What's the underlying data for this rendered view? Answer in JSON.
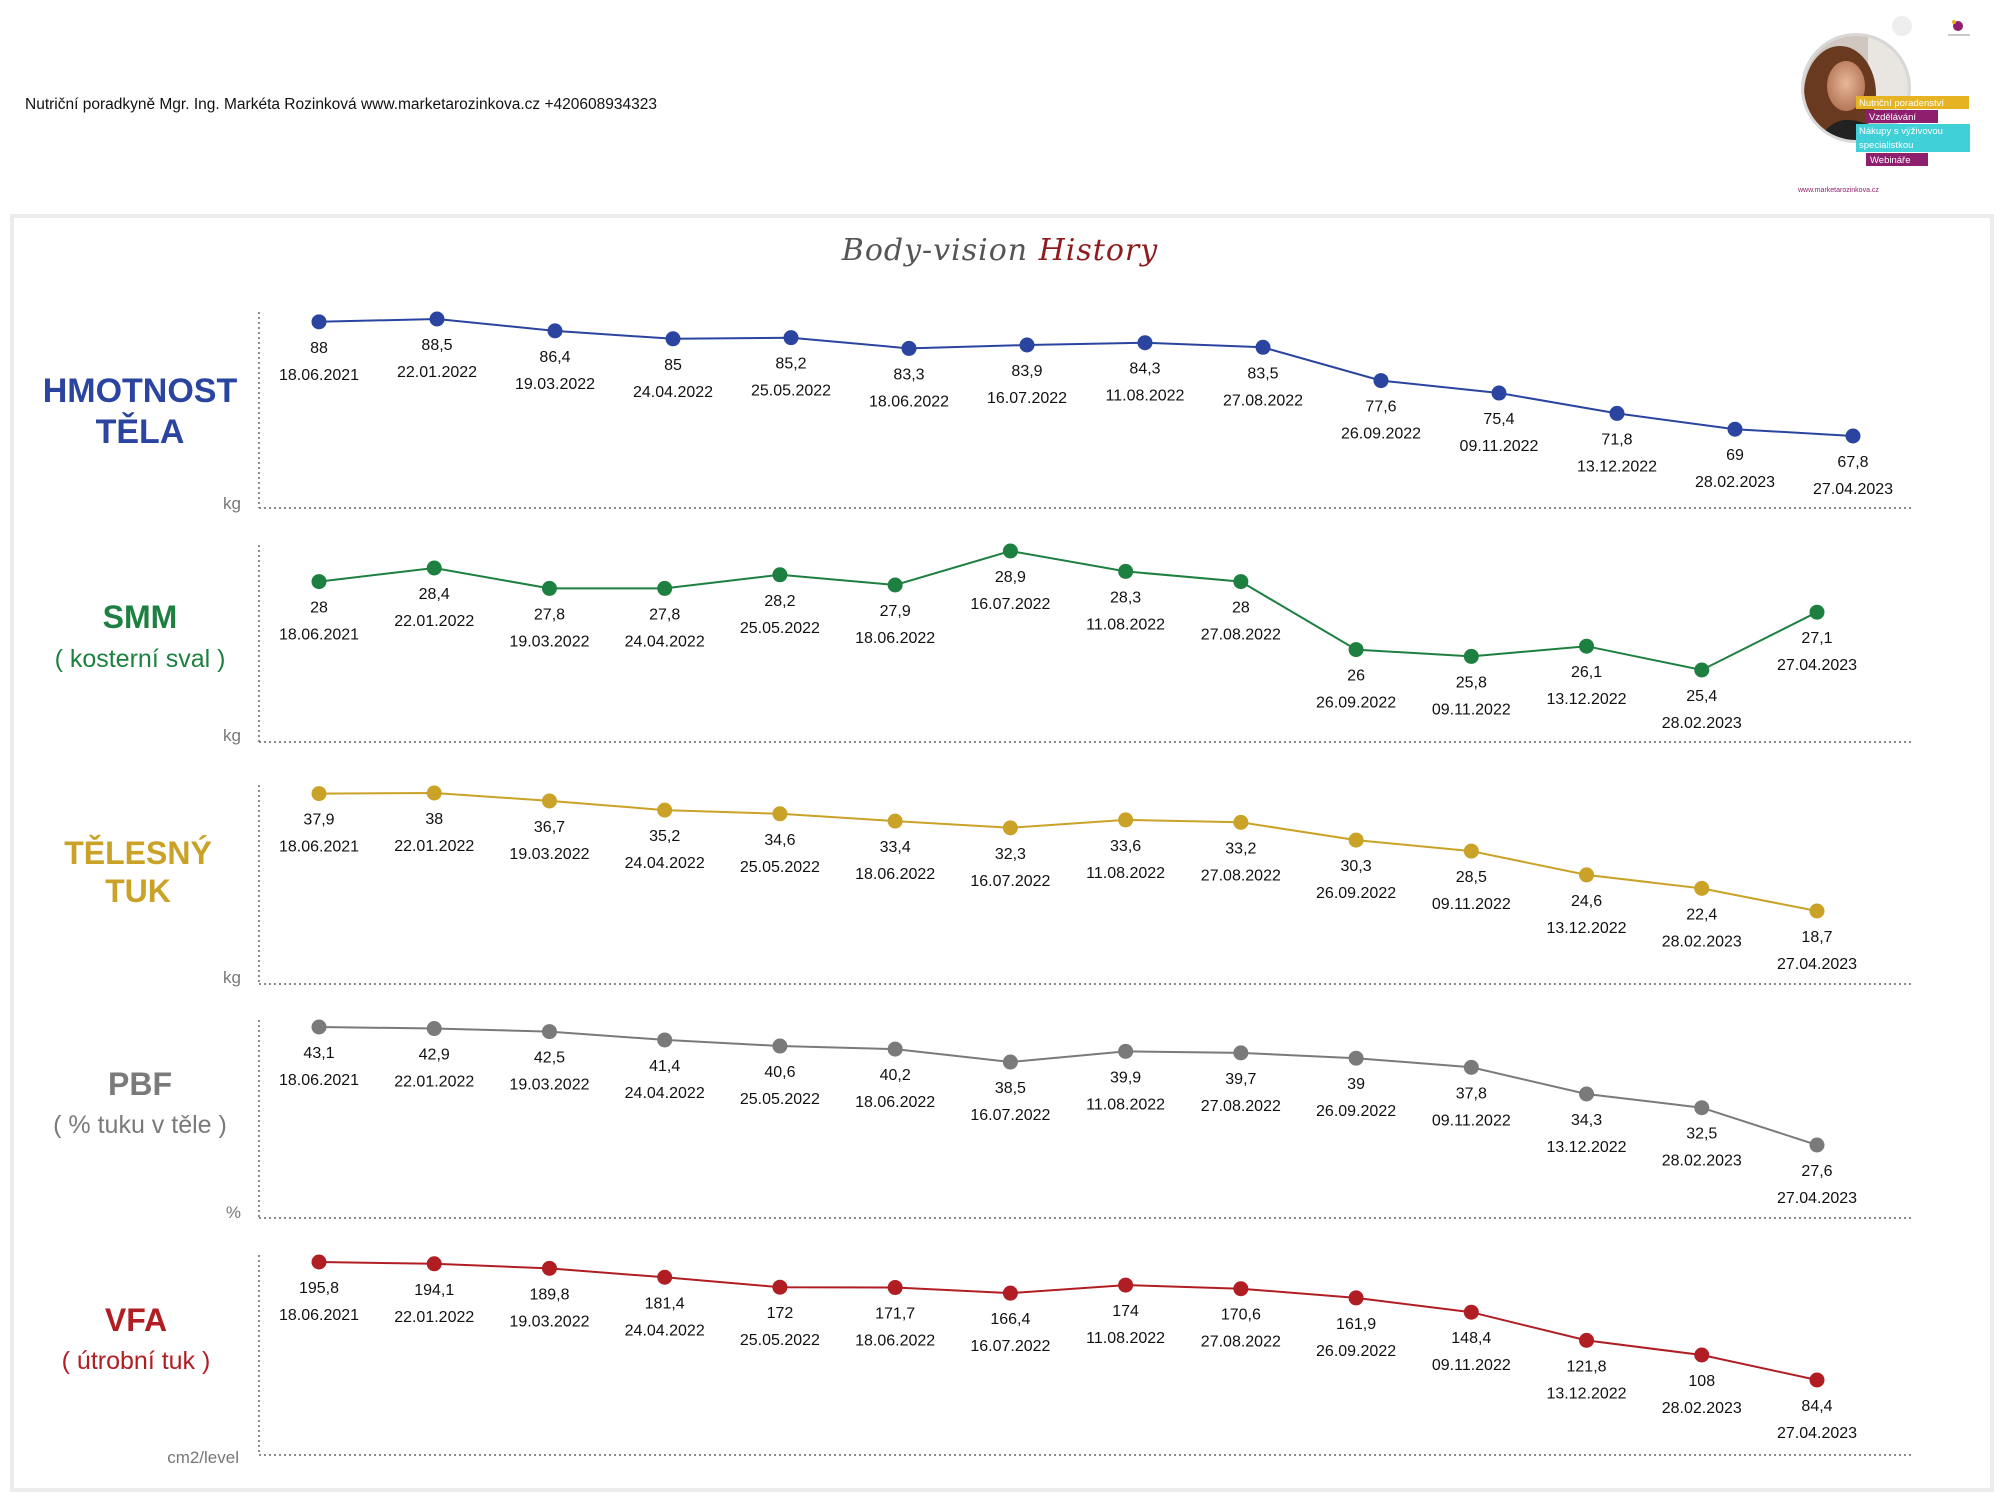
{
  "header": {
    "contact": "Nutriční poradkyně Mgr. Ing. Markéta Rozinková www.marketarozinkova.cz +420608934323"
  },
  "logo": {
    "badges": [
      "Nutriční poradenství",
      "Vzdělávání",
      "Nákupy s výživovou",
      "specialistkou",
      "Webináře"
    ],
    "url": "www.marketarozinkova.cz",
    "colors": {
      "yellow": "#e6b422",
      "purple": "#8e1e6e",
      "cyan": "#3fd0d8"
    }
  },
  "title": {
    "part1": "Body-vision",
    "part2": "History"
  },
  "chart_data": [
    {
      "type": "line",
      "label_line1": "HMOTNOST",
      "label_line2": "TĚLA",
      "unit": "kg",
      "color": "#2a44a0",
      "x": [
        "18.06.2021",
        "22.01.2022",
        "19.03.2022",
        "24.04.2022",
        "25.05.2022",
        "18.06.2022",
        "16.07.2022",
        "11.08.2022",
        "27.08.2022",
        "26.09.2022",
        "09.11.2022",
        "13.12.2022",
        "28.02.2023",
        "27.04.2023"
      ],
      "values": [
        "88",
        "88,5",
        "86,4",
        "85",
        "85,2",
        "83,3",
        "83,9",
        "84,3",
        "83,5",
        "77,6",
        "75,4",
        "71,8",
        "69",
        "67,8"
      ],
      "ylim": [
        67.8,
        88.5
      ]
    },
    {
      "type": "line",
      "label_line1": "SMM",
      "label_line2": "( kosterní sval )",
      "unit": "kg",
      "color": "#1e8040",
      "x": [
        "18.06.2021",
        "22.01.2022",
        "19.03.2022",
        "24.04.2022",
        "25.05.2022",
        "18.06.2022",
        "16.07.2022",
        "11.08.2022",
        "27.08.2022",
        "26.09.2022",
        "09.11.2022",
        "13.12.2022",
        "28.02.2023",
        "27.04.2023"
      ],
      "values": [
        "28",
        "28,4",
        "27,8",
        "27,8",
        "28,2",
        "27,9",
        "28,9",
        "28,3",
        "28",
        "26",
        "25,8",
        "26,1",
        "25,4",
        "27,1"
      ],
      "ylim": [
        25.4,
        28.9
      ]
    },
    {
      "type": "line",
      "label_line1": "TĚLESNÝ",
      "label_line2": "TUK",
      "unit": "kg",
      "color": "#c9a227",
      "x": [
        "18.06.2021",
        "22.01.2022",
        "19.03.2022",
        "24.04.2022",
        "25.05.2022",
        "18.06.2022",
        "16.07.2022",
        "11.08.2022",
        "27.08.2022",
        "26.09.2022",
        "09.11.2022",
        "13.12.2022",
        "28.02.2023",
        "27.04.2023"
      ],
      "values": [
        "37,9",
        "38",
        "36,7",
        "35,2",
        "34,6",
        "33,4",
        "32,3",
        "33,6",
        "33,2",
        "30,3",
        "28,5",
        "24,6",
        "22,4",
        "18,7"
      ],
      "ylim": [
        18.7,
        38
      ]
    },
    {
      "type": "line",
      "label_line1": "PBF",
      "label_line2": "( % tuku v těle )",
      "unit": "%",
      "color": "#7a7a7a",
      "x": [
        "18.06.2021",
        "22.01.2022",
        "19.03.2022",
        "24.04.2022",
        "25.05.2022",
        "18.06.2022",
        "16.07.2022",
        "11.08.2022",
        "27.08.2022",
        "26.09.2022",
        "09.11.2022",
        "13.12.2022",
        "28.02.2023",
        "27.04.2023"
      ],
      "values": [
        "43,1",
        "42,9",
        "42,5",
        "41,4",
        "40,6",
        "40,2",
        "38,5",
        "39,9",
        "39,7",
        "39",
        "37,8",
        "34,3",
        "32,5",
        "27,6"
      ],
      "ylim": [
        27.6,
        43.1
      ]
    },
    {
      "type": "line",
      "label_line1": "VFA",
      "label_line2": "( útrobní tuk )",
      "unit": "cm2/level",
      "color": "#b01e24",
      "x": [
        "18.06.2021",
        "22.01.2022",
        "19.03.2022",
        "24.04.2022",
        "25.05.2022",
        "18.06.2022",
        "16.07.2022",
        "11.08.2022",
        "27.08.2022",
        "26.09.2022",
        "09.11.2022",
        "13.12.2022",
        "28.02.2023",
        "27.04.2023"
      ],
      "values": [
        "195,8",
        "194,1",
        "189,8",
        "181,4",
        "172",
        "171,7",
        "166,4",
        "174",
        "170,6",
        "161,9",
        "148,4",
        "121,8",
        "108",
        "84,4"
      ],
      "ylim": [
        84.4,
        195.8
      ]
    }
  ]
}
